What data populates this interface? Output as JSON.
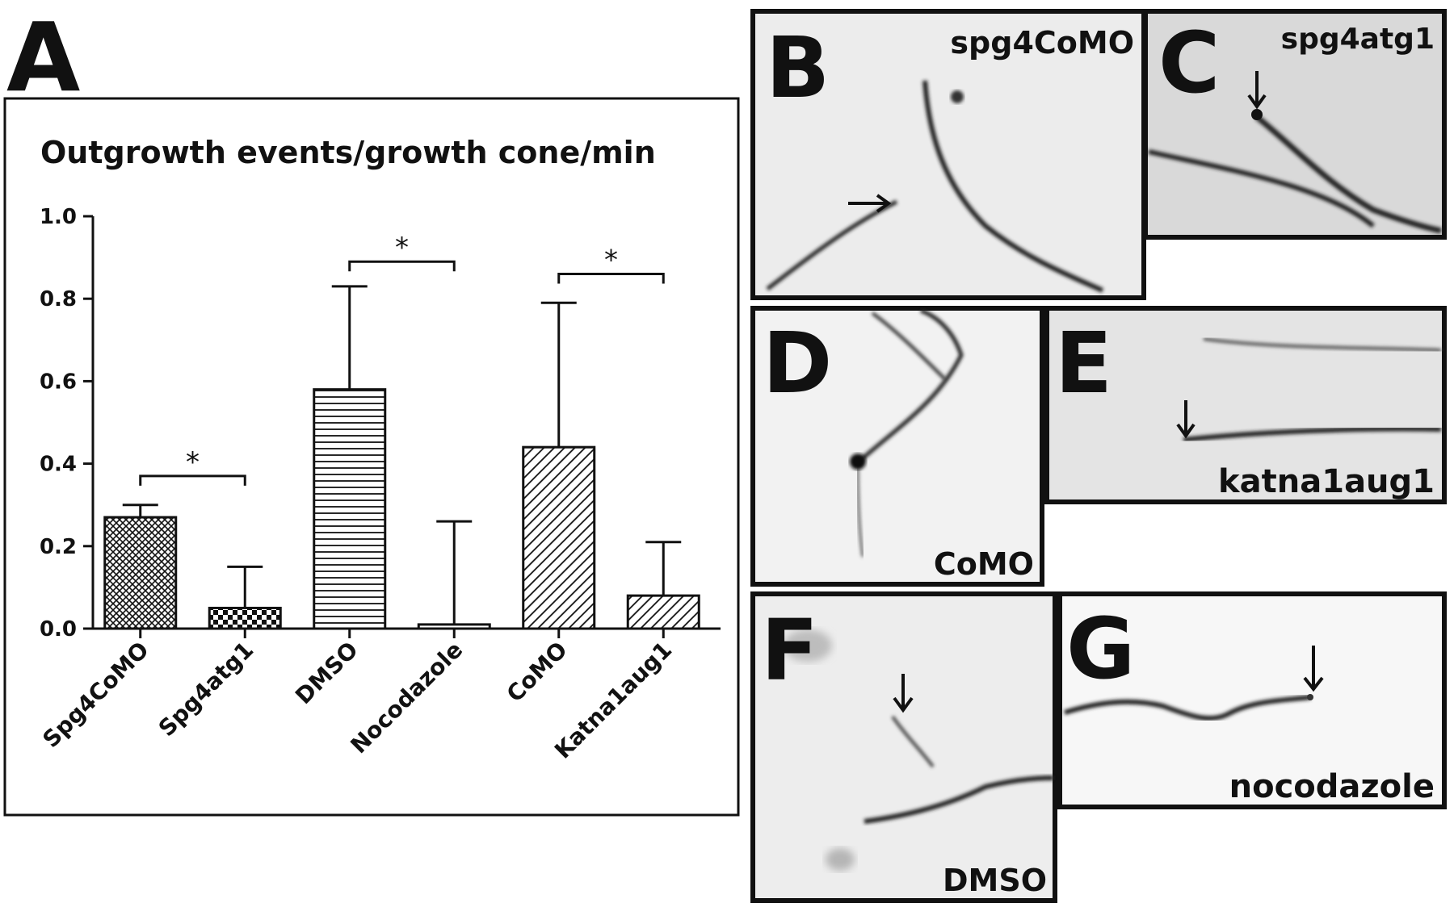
{
  "figure": {
    "panel_a_letter": "A",
    "micrographs": [
      {
        "letter": "B",
        "label": "spg4CoMO"
      },
      {
        "letter": "C",
        "label": "spg4atg1"
      },
      {
        "letter": "D",
        "label": "CoMO"
      },
      {
        "letter": "E",
        "label": "katna1aug1"
      },
      {
        "letter": "F",
        "label": "DMSO"
      },
      {
        "letter": "G",
        "label": "nocodazole"
      }
    ]
  },
  "chart_data": {
    "type": "bar",
    "title": "Outgrowth events/growth cone/min",
    "xlabel": "",
    "ylabel": "",
    "ylim": [
      0,
      1.0
    ],
    "yticks": [
      "0.0",
      "0.2",
      "0.4",
      "0.6",
      "0.8",
      "1.0"
    ],
    "categories": [
      "Spg4CoMO",
      "Spg4atg1",
      "DMSO",
      "Nocodazole",
      "CoMO",
      "Katna1aug1"
    ],
    "values": [
      0.27,
      0.05,
      0.58,
      0.01,
      0.44,
      0.08
    ],
    "error_upper": [
      0.3,
      0.15,
      0.83,
      0.26,
      0.79,
      0.21
    ],
    "patterns": [
      "crosshatch",
      "checker",
      "horizontal-lines",
      "none",
      "diagonal-lines",
      "diagonal-lines"
    ],
    "significance": [
      {
        "from": 0,
        "to": 1,
        "y": 0.37,
        "label": "*"
      },
      {
        "from": 2,
        "to": 3,
        "y": 0.89,
        "label": "*"
      },
      {
        "from": 4,
        "to": 5,
        "y": 0.86,
        "label": "*"
      }
    ],
    "grid": false,
    "legend": "none"
  }
}
